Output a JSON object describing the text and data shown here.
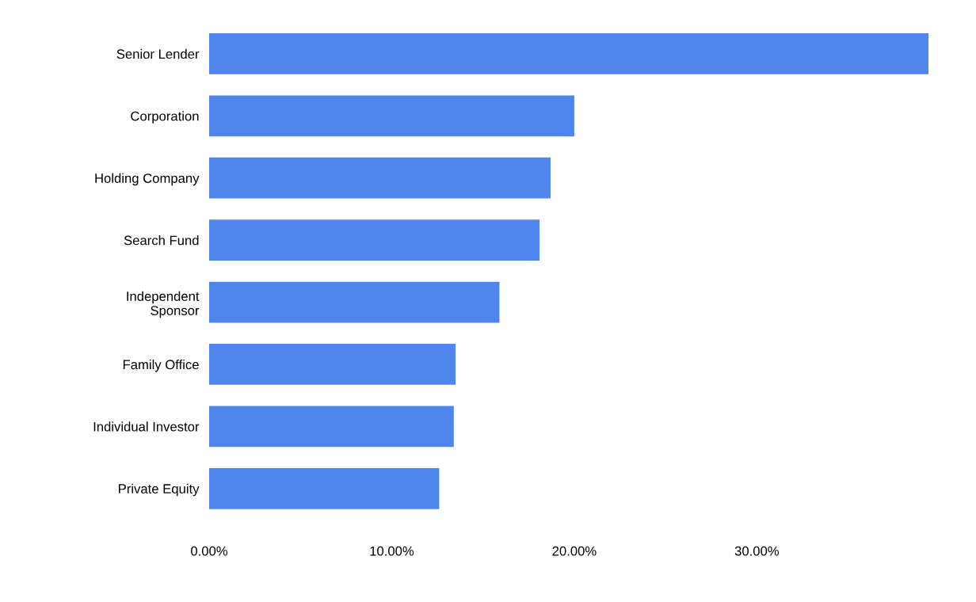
{
  "chart_data": {
    "type": "bar",
    "orientation": "horizontal",
    "categories": [
      "Senior Lender",
      "Corporation",
      "Holding Company",
      "Search Fund",
      "Independent\nSponsor",
      "Family Office",
      "Individual Investor",
      "Private Equity"
    ],
    "values": [
      39.4,
      20.0,
      18.7,
      18.1,
      15.9,
      13.5,
      13.4,
      12.6
    ],
    "color": "#5086ec",
    "xlim": [
      0,
      39.4
    ],
    "xticks": [
      {
        "value": 0,
        "label": "0.00%"
      },
      {
        "value": 10,
        "label": "10.00%"
      },
      {
        "value": 20,
        "label": "20.00%"
      },
      {
        "value": 30,
        "label": "30.00%"
      }
    ],
    "grid": false,
    "legend": false
  }
}
